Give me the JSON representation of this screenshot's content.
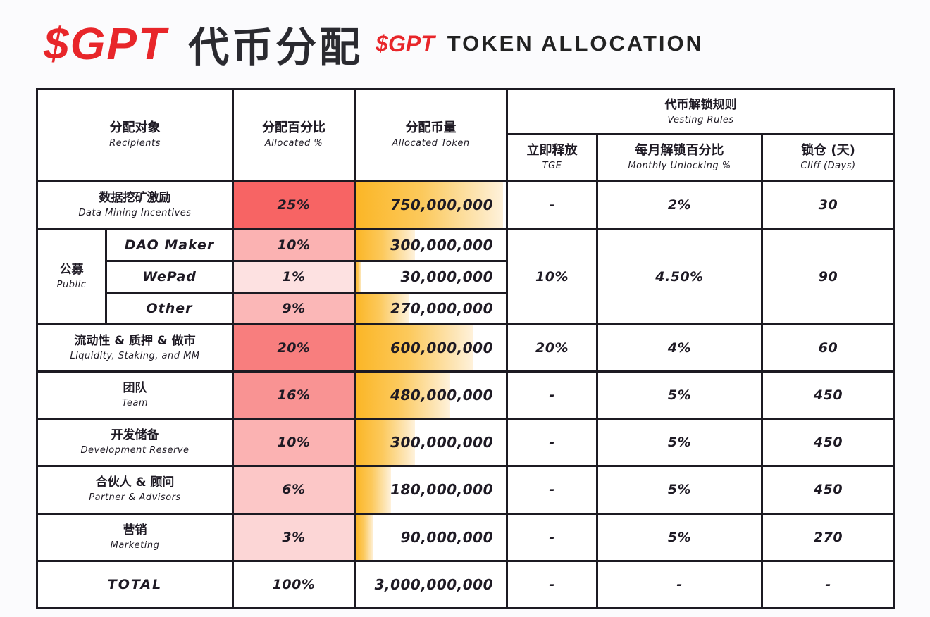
{
  "title": {
    "ticker_large": "$GPT",
    "chinese": "代币分配",
    "ticker_small": "$GPT",
    "english": "TOKEN ALLOCATION"
  },
  "colors": {
    "accent_red": "#e8262a",
    "pct_scale_max": "#f76464",
    "pct_scale_min": "#fde6e6",
    "token_bar_start": "#fbb626",
    "token_bar_end": "#fff2dc",
    "border": "#1c1a22"
  },
  "headers": {
    "recipients": {
      "zh": "分配对象",
      "en": "Recipients"
    },
    "allocated_pct": {
      "zh": "分配百分比",
      "en": "Allocated %"
    },
    "allocated_token": {
      "zh": "分配币量",
      "en": "Allocated Token"
    },
    "vesting": {
      "zh": "代币解锁规则",
      "en": "Vesting Rules"
    },
    "tge": {
      "zh": "立即释放",
      "en": "TGE"
    },
    "monthly": {
      "zh": "每月解锁百分比",
      "en": "Monthly Unlocking %"
    },
    "cliff": {
      "zh": "锁仓 (天)",
      "en": "Cliff (Days)"
    }
  },
  "rows": [
    {
      "zh": "数据挖矿激励",
      "en": "Data Mining Incentives",
      "pct": "25%",
      "pct_num": 25,
      "token": "750,000,000",
      "tge": "-",
      "monthly": "2%",
      "cliff": "30"
    },
    {
      "zh": "流动性 & 质押 & 做市",
      "en": "Liquidity, Staking, and MM",
      "pct": "20%",
      "pct_num": 20,
      "token": "600,000,000",
      "tge": "20%",
      "monthly": "4%",
      "cliff": "60"
    },
    {
      "zh": "团队",
      "en": "Team",
      "pct": "16%",
      "pct_num": 16,
      "token": "480,000,000",
      "tge": "-",
      "monthly": "5%",
      "cliff": "450"
    },
    {
      "zh": "开发储备",
      "en": "Development Reserve",
      "pct": "10%",
      "pct_num": 10,
      "token": "300,000,000",
      "tge": "-",
      "monthly": "5%",
      "cliff": "450"
    },
    {
      "zh": "合伙人 & 顾问",
      "en": "Partner & Advisors",
      "pct": "6%",
      "pct_num": 6,
      "token": "180,000,000",
      "tge": "-",
      "monthly": "5%",
      "cliff": "450"
    },
    {
      "zh": "营销",
      "en": "Marketing",
      "pct": "3%",
      "pct_num": 3,
      "token": "90,000,000",
      "tge": "-",
      "monthly": "5%",
      "cliff": "270"
    }
  ],
  "public_group": {
    "zh": "公募",
    "en": "Public",
    "tge": "10%",
    "monthly": "4.50%",
    "cliff": "90",
    "subs": [
      {
        "name": "DAO Maker",
        "pct": "10%",
        "pct_num": 10,
        "token": "300,000,000"
      },
      {
        "name": "WePad",
        "pct": "1%",
        "pct_num": 1,
        "token": "30,000,000"
      },
      {
        "name": "Other",
        "pct": "9%",
        "pct_num": 9,
        "token": "270,000,000"
      }
    ]
  },
  "total": {
    "label": "TOTAL",
    "pct": "100%",
    "token": "3,000,000,000",
    "tge": "-",
    "monthly": "-",
    "cliff": "-"
  }
}
